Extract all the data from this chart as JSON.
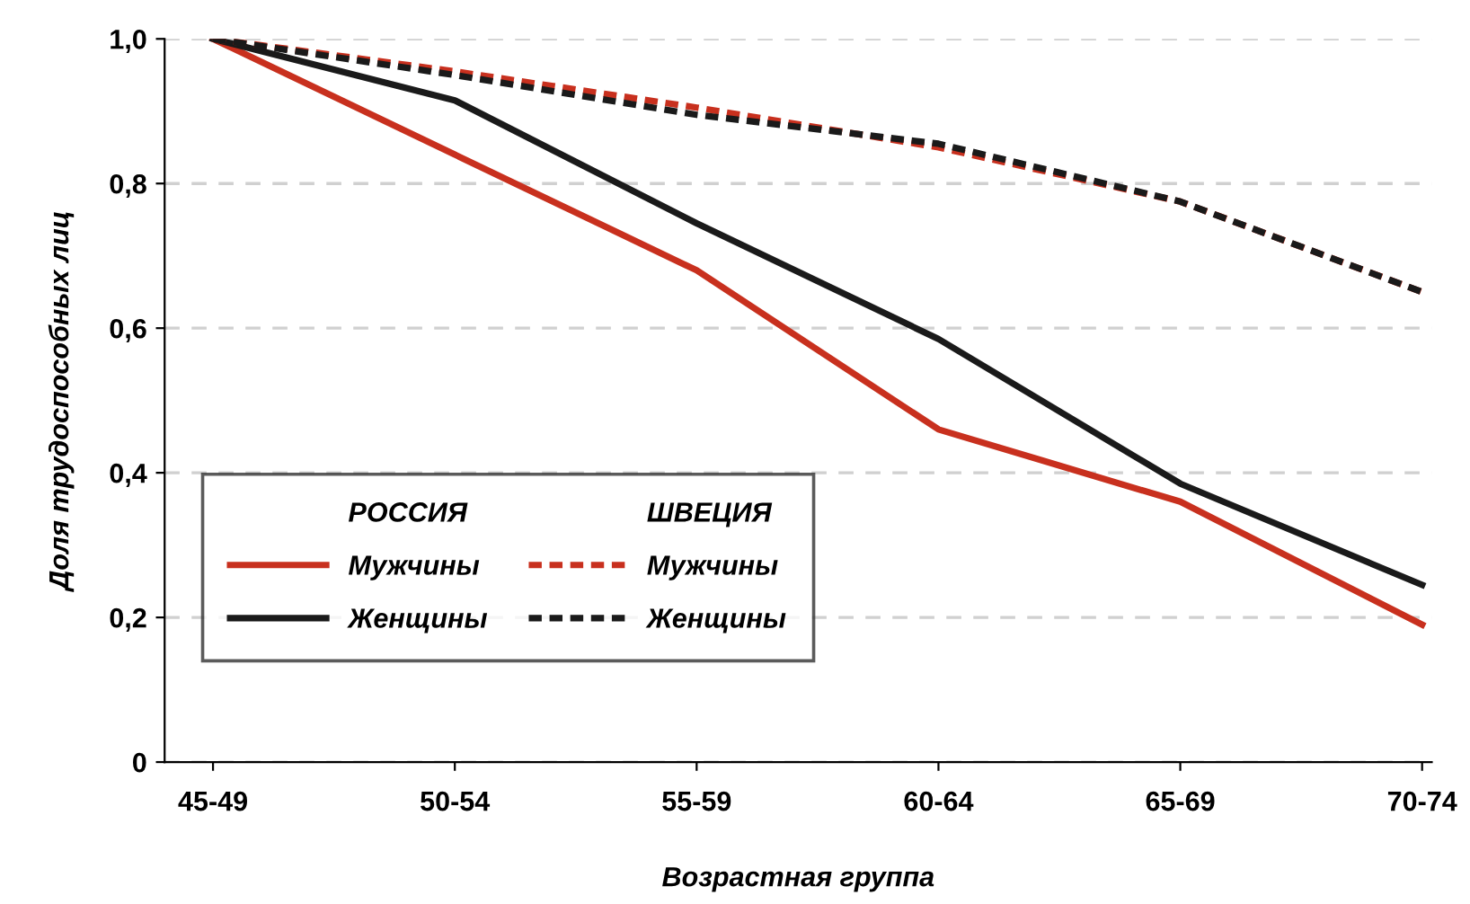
{
  "chart_data": {
    "type": "line",
    "xlabel": "Возрастная группа",
    "ylabel": "Доля трудоспособных лиц",
    "categories": [
      "45-49",
      "50-54",
      "55-59",
      "60-64",
      "65-69",
      "70-74"
    ],
    "series": [
      {
        "name": "Мужчины",
        "color": "#c8301e",
        "line_style": "solid",
        "values": [
          1.0,
          0.84,
          0.68,
          0.46,
          0.36,
          0.19
        ]
      },
      {
        "name": "Женщины",
        "color": "#1a1a1a",
        "line_style": "solid",
        "values": [
          1.0,
          0.915,
          0.745,
          0.585,
          0.385,
          0.245
        ]
      },
      {
        "name": "Мужчины",
        "color": "#c8301e",
        "line_style": "dashed",
        "values": [
          1.0,
          0.955,
          0.905,
          0.85,
          0.775,
          0.65
        ]
      },
      {
        "name": "Женщины",
        "color": "#1a1a1a",
        "line_style": "dashed",
        "values": [
          1.0,
          0.95,
          0.895,
          0.855,
          0.775,
          0.65
        ]
      }
    ],
    "annotations": [
      "РОССИЯ",
      "ШВЕЦИЯ"
    ],
    "ylim": [
      0,
      1.0
    ],
    "yticks": [
      {
        "value": 0,
        "label": "0"
      },
      {
        "value": 0.2,
        "label": "0,2"
      },
      {
        "value": 0.4,
        "label": "0,4"
      },
      {
        "value": 0.6,
        "label": "0,6"
      },
      {
        "value": 0.8,
        "label": "0,8"
      },
      {
        "value": 1.0,
        "label": "1,0"
      }
    ],
    "grid": "y",
    "legend": "bottom left",
    "marker": "none"
  }
}
